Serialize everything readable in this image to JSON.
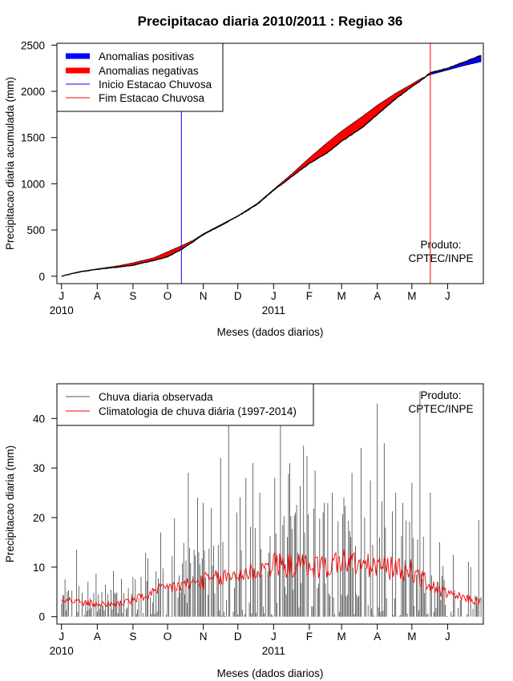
{
  "chart_data": [
    {
      "type": "area",
      "title": "Precipitacao diaria 2010/2011 : Regiao 36",
      "ylabel": "Precipitacao diaria acumulada (mm)",
      "xlabel": "Meses (dados diarios)",
      "x_unit": "days since 2010-07-01",
      "xlim": [
        -4,
        366
      ],
      "ylim": [
        -80,
        2520
      ],
      "yticks": [
        0,
        500,
        1000,
        1500,
        2000,
        2500
      ],
      "month_ticks": [
        {
          "label": "J",
          "day": 0
        },
        {
          "label": "A",
          "day": 31
        },
        {
          "label": "S",
          "day": 62
        },
        {
          "label": "O",
          "day": 92
        },
        {
          "label": "N",
          "day": 123
        },
        {
          "label": "D",
          "day": 153
        },
        {
          "label": "J",
          "day": 184
        },
        {
          "label": "F",
          "day": 215
        },
        {
          "label": "M",
          "day": 243
        },
        {
          "label": "A",
          "day": 274
        },
        {
          "label": "M",
          "day": 304
        },
        {
          "label": "J",
          "day": 335
        }
      ],
      "year_labels": [
        {
          "label": "2010",
          "day": 0
        },
        {
          "label": "2011",
          "day": 184
        }
      ],
      "legend": [
        {
          "label": "Anomalias positivas",
          "color": "#0000ff"
        },
        {
          "label": "Anomalias negativas",
          "color": "#ff0000"
        },
        {
          "label": "Inicio Estacao Chuvosa",
          "color": "#0000ff"
        },
        {
          "label": "Fim Estacao Chuvosa",
          "color": "#ff0000"
        }
      ],
      "annotation": [
        "Produto:",
        "CPTEC/INPE"
      ],
      "rainy_season_start_day": 104,
      "rainy_season_end_day": 320,
      "observed_cumulative": {
        "days": [
          0,
          15,
          31,
          50,
          62,
          80,
          92,
          104,
          115,
          123,
          140,
          153,
          170,
          184,
          200,
          215,
          230,
          243,
          260,
          274,
          290,
          304,
          312,
          320,
          335,
          350,
          364
        ],
        "values": [
          0,
          45,
          75,
          100,
          120,
          170,
          210,
          290,
          380,
          450,
          560,
          650,
          780,
          930,
          1080,
          1220,
          1330,
          1460,
          1600,
          1750,
          1920,
          2050,
          2120,
          2200,
          2250,
          2320,
          2390
        ]
      },
      "climatology_cumulative": {
        "days": [
          0,
          15,
          31,
          50,
          62,
          80,
          92,
          104,
          115,
          123,
          140,
          153,
          170,
          184,
          200,
          215,
          230,
          243,
          260,
          274,
          290,
          304,
          312,
          320,
          335,
          350,
          364
        ],
        "values": [
          0,
          50,
          80,
          115,
          145,
          200,
          265,
          330,
          395,
          460,
          570,
          655,
          790,
          940,
          1110,
          1280,
          1440,
          1570,
          1720,
          1850,
          1980,
          2080,
          2140,
          2180,
          2230,
          2280,
          2320
        ]
      }
    },
    {
      "type": "bar",
      "ylabel": "Precipitacao diaria (mm)",
      "xlabel": "Meses (dados diarios)",
      "x_unit": "days since 2010-07-01",
      "xlim": [
        -4,
        366
      ],
      "ylim": [
        -1.5,
        47
      ],
      "yticks": [
        0,
        10,
        20,
        30,
        40
      ],
      "month_ticks": [
        {
          "label": "J",
          "day": 0
        },
        {
          "label": "A",
          "day": 31
        },
        {
          "label": "S",
          "day": 62
        },
        {
          "label": "O",
          "day": 92
        },
        {
          "label": "N",
          "day": 123
        },
        {
          "label": "D",
          "day": 153
        },
        {
          "label": "J",
          "day": 184
        },
        {
          "label": "F",
          "day": 215
        },
        {
          "label": "M",
          "day": 243
        },
        {
          "label": "A",
          "day": 274
        },
        {
          "label": "M",
          "day": 304
        },
        {
          "label": "J",
          "day": 335
        }
      ],
      "year_labels": [
        {
          "label": "2010",
          "day": 0
        },
        {
          "label": "2011",
          "day": 184
        }
      ],
      "legend": [
        {
          "label": "Chuva diaria observada",
          "color": "#555555"
        },
        {
          "label": "Climatologia de chuva diária (1997-2014)",
          "color": "#ff0000"
        }
      ],
      "annotation": [
        "Produto:",
        "CPTEC/INPE"
      ],
      "observed_daily_peaks": [
        {
          "day": 3,
          "value": 7.5
        },
        {
          "day": 13,
          "value": 13.5
        },
        {
          "day": 30,
          "value": 8.7
        },
        {
          "day": 45,
          "value": 9.2
        },
        {
          "day": 62,
          "value": 8.0
        },
        {
          "day": 86,
          "value": 17.0
        },
        {
          "day": 98,
          "value": 19.8
        },
        {
          "day": 110,
          "value": 29.0
        },
        {
          "day": 118,
          "value": 24.0
        },
        {
          "day": 123,
          "value": 23.0
        },
        {
          "day": 130,
          "value": 22.0
        },
        {
          "day": 138,
          "value": 32.0
        },
        {
          "day": 145,
          "value": 41.0
        },
        {
          "day": 152,
          "value": 21.0
        },
        {
          "day": 160,
          "value": 28.0
        },
        {
          "day": 166,
          "value": 31.0
        },
        {
          "day": 172,
          "value": 25.0
        },
        {
          "day": 185,
          "value": 28.0
        },
        {
          "day": 190,
          "value": 39.0
        },
        {
          "day": 198,
          "value": 31.0
        },
        {
          "day": 203,
          "value": 21.0
        },
        {
          "day": 210,
          "value": 34.5
        },
        {
          "day": 220,
          "value": 29.5
        },
        {
          "day": 228,
          "value": 23.0
        },
        {
          "day": 235,
          "value": 25.0
        },
        {
          "day": 245,
          "value": 24.0
        },
        {
          "day": 252,
          "value": 29.0
        },
        {
          "day": 260,
          "value": 34.0
        },
        {
          "day": 268,
          "value": 27.5
        },
        {
          "day": 274,
          "value": 43.0
        },
        {
          "day": 280,
          "value": 35.0
        },
        {
          "day": 290,
          "value": 25.0
        },
        {
          "day": 296,
          "value": 23.0
        },
        {
          "day": 304,
          "value": 27.0
        },
        {
          "day": 311,
          "value": 45.5
        },
        {
          "day": 320,
          "value": 25.0
        },
        {
          "day": 328,
          "value": 15.0
        },
        {
          "day": 340,
          "value": 12.5
        },
        {
          "day": 355,
          "value": 10.0
        },
        {
          "day": 362,
          "value": 19.5
        }
      ],
      "climatology_daily": {
        "days": [
          0,
          10,
          20,
          31,
          45,
          62,
          80,
          92,
          110,
          123,
          140,
          153,
          170,
          184,
          200,
          215,
          230,
          243,
          260,
          274,
          290,
          304,
          320,
          335,
          350,
          364
        ],
        "values": [
          3.6,
          3.2,
          2.8,
          2.5,
          2.5,
          3.3,
          4.8,
          5.8,
          6.5,
          7.1,
          7.8,
          8.5,
          9.3,
          10.5,
          10.3,
          10.3,
          10.0,
          11.5,
          10.2,
          10.2,
          9.6,
          9.3,
          6.2,
          4.5,
          3.7,
          3.0
        ]
      }
    }
  ]
}
